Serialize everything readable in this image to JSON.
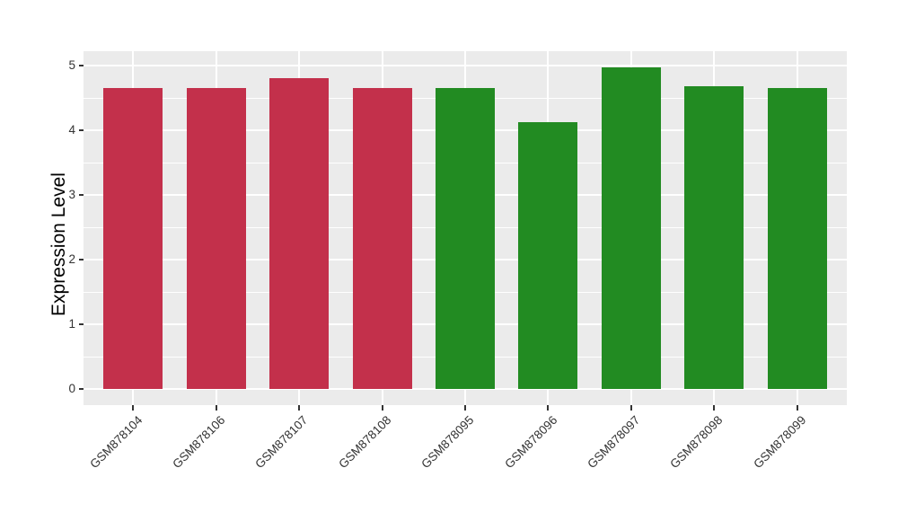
{
  "chart_data": {
    "type": "bar",
    "title": "",
    "xlabel": "",
    "ylabel": "Expression Level",
    "categories": [
      "GSM878104",
      "GSM878106",
      "GSM878107",
      "GSM878108",
      "GSM878095",
      "GSM878096",
      "GSM878097",
      "GSM878098",
      "GSM878099"
    ],
    "values": [
      4.65,
      4.65,
      4.81,
      4.66,
      4.65,
      4.13,
      4.98,
      4.69,
      4.65
    ],
    "bar_colors": [
      "#C3304B",
      "#C3304B",
      "#C3304B",
      "#C3304B",
      "#228B22",
      "#228B22",
      "#228B22",
      "#228B22",
      "#228B22"
    ],
    "groups": [
      {
        "name": "red-group",
        "color": "#C3304B",
        "categories": [
          "GSM878104",
          "GSM878106",
          "GSM878107",
          "GSM878108"
        ]
      },
      {
        "name": "green-group",
        "color": "#228B22",
        "categories": [
          "GSM878095",
          "GSM878096",
          "GSM878097",
          "GSM878098",
          "GSM878099"
        ]
      }
    ],
    "ylim": [
      0,
      5
    ],
    "yticks": [
      0,
      1,
      2,
      3,
      4,
      5
    ],
    "minor_ytick_step": 0.5,
    "grid": true,
    "legend_position": "none",
    "style": {
      "panel_background": "#EBEBEB",
      "major_gridline_color": "#FFFFFF",
      "minor_gridline_color": "#FFFFFF",
      "tick_color": "#333333",
      "tick_label_color": "#333333",
      "axis_title_color": "#000000"
    }
  }
}
